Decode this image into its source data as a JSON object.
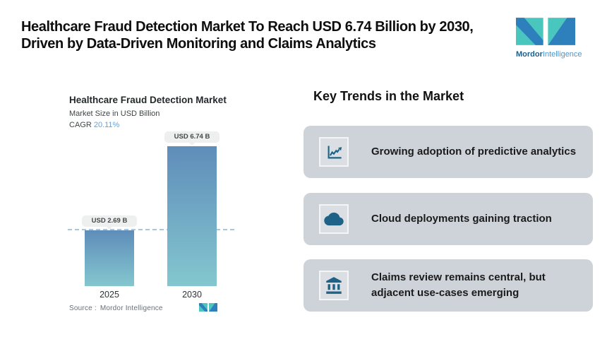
{
  "header": {
    "title": "Healthcare Fraud Detection Market To Reach USD 6.74 Billion by 2030,\nDriven by Data-Driven Monitoring and Claims Analytics",
    "logo": {
      "brand_bold": "Mordor",
      "brand_light": "Intelligence"
    }
  },
  "chart": {
    "title": "Healthcare Fraud Detection Market",
    "subtitle": "Market Size in USD Billion",
    "cagr_label": "CAGR",
    "cagr_value": "20.11%",
    "source_label": "Source :",
    "source_value": "Mordor Intelligence"
  },
  "chart_data": {
    "type": "bar",
    "categories": [
      "2025",
      "2030"
    ],
    "values": [
      2.69,
      6.74
    ],
    "bar_labels": [
      "USD 2.69 B",
      "USD 6.74 B"
    ],
    "title": "Healthcare Fraud Detection Market",
    "ylabel": "Market Size in USD Billion",
    "cagr": "20.11%",
    "ylim": [
      0,
      6.74
    ],
    "reference_line": 2.69,
    "grid": false,
    "legend": false,
    "bar_gradient": [
      "#5f8dba",
      "#84c7cf"
    ]
  },
  "trends": {
    "heading": "Key Trends in the Market",
    "items": [
      {
        "icon": "line-chart-icon",
        "text": "Growing adoption of predictive analytics"
      },
      {
        "icon": "cloud-icon",
        "text": "Cloud deployments gaining traction"
      },
      {
        "icon": "bank-icon",
        "text": "Claims review remains central, but adjacent use-cases emerging"
      }
    ]
  },
  "colors": {
    "teal": "#49c6be",
    "blue": "#2e80bd",
    "brand_dark": "#1b5e8a",
    "brand_light": "#4a96cc",
    "bar_top": "#5f8dba",
    "bar_bottom": "#84c7cf",
    "card_bg": "#cdd3d9",
    "icon_blue": "#1e6387",
    "cagr_blue": "#64a2d8",
    "dash": "#a9c6da",
    "pill_bg": "#edf0ee"
  }
}
